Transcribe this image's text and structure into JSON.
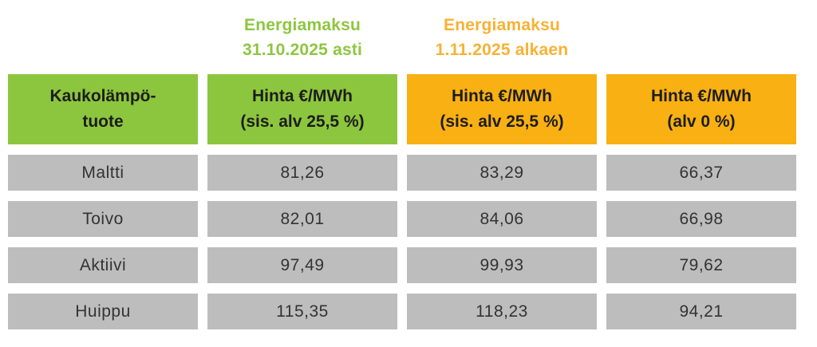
{
  "colors": {
    "green_header_bg": "#8CC63E",
    "orange_header_bg": "#F9B013",
    "green_banner_text": "#8DC63F",
    "orange_banner_text": "#F7B233",
    "gray_cell_bg": "#BDBDBD",
    "header_text": "#1d1d1b",
    "cell_text": "#333333",
    "page_bg": "#ffffff"
  },
  "column_banners": [
    {
      "line1": "Energiamaksu",
      "line2": "31.10.2025 asti",
      "color": "#8DC63F"
    },
    {
      "line1": "Energiamaksu",
      "line2": "1.11.2025 alkaen",
      "color": "#F7B233"
    }
  ],
  "table": {
    "headers": [
      {
        "line1": "Kaukolämpö-",
        "line2": "tuote",
        "variant": "green"
      },
      {
        "line1": "Hinta €/MWh",
        "line2": "(sis. alv 25,5 %)",
        "variant": "green"
      },
      {
        "line1": "Hinta €/MWh",
        "line2": "(sis. alv 25,5 %)",
        "variant": "orange"
      },
      {
        "line1": "Hinta €/MWh",
        "line2": "(alv 0 %)",
        "variant": "orange"
      }
    ],
    "rows": [
      {
        "product": "Maltti",
        "values": [
          "81,26",
          "83,29",
          "66,37"
        ]
      },
      {
        "product": "Toivo",
        "values": [
          "82,01",
          "84,06",
          "66,98"
        ]
      },
      {
        "product": "Aktiivi",
        "values": [
          "97,49",
          "99,93",
          "79,62"
        ]
      },
      {
        "product": "Huippu",
        "values": [
          "115,35",
          "118,23",
          "94,21"
        ]
      }
    ]
  }
}
